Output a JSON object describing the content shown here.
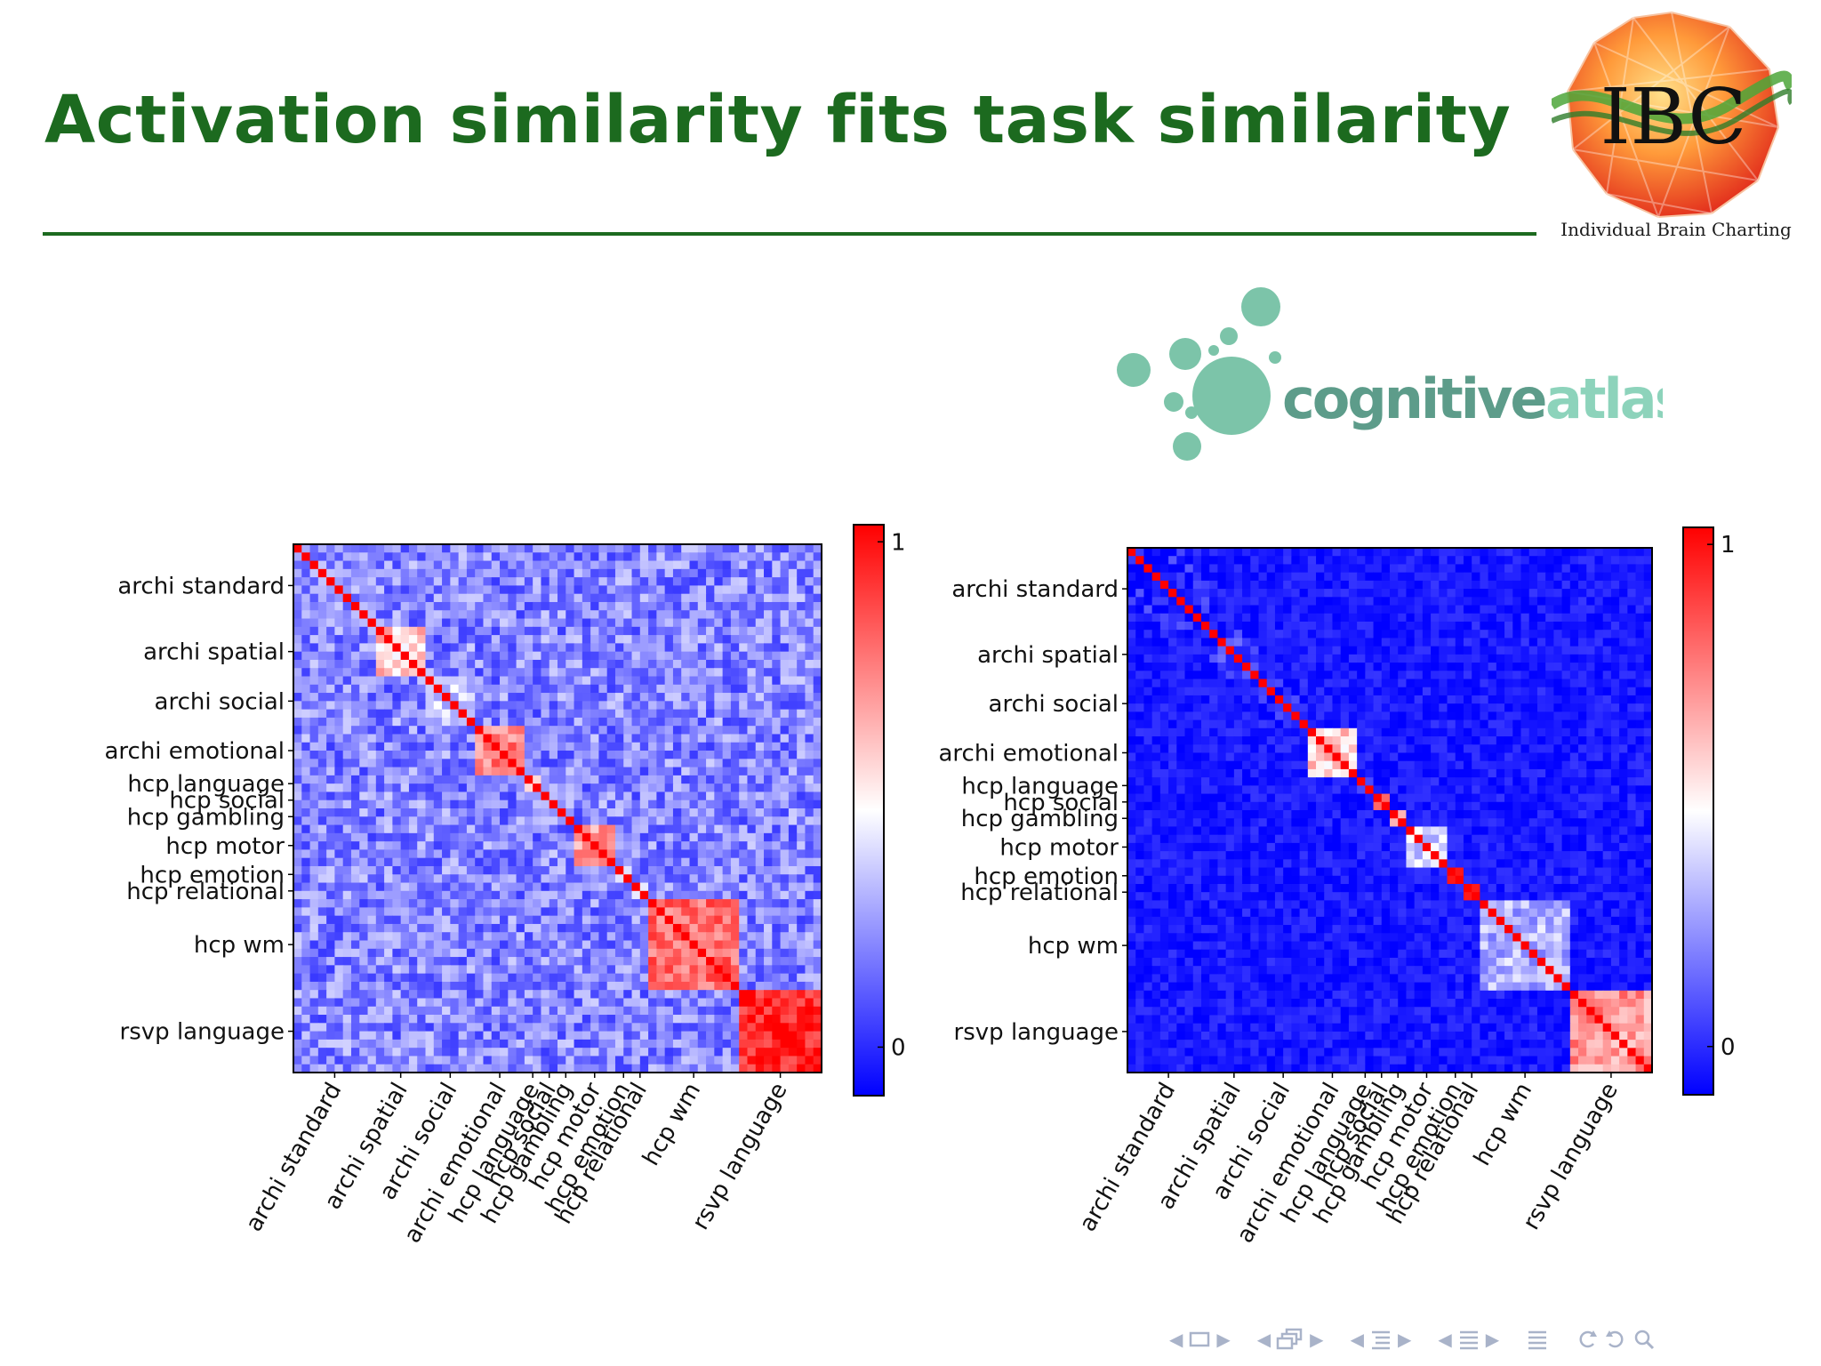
{
  "slide": {
    "title": "Activation similarity fits task similarity",
    "ibc_logo_text": "IBC",
    "ibc_caption": "Individual Brain Charting",
    "ca_logo_word1": "cognitive",
    "ca_logo_word2": "atlas"
  },
  "colors": {
    "title": "#1c6a1f",
    "cmap_low": "#0000ff",
    "cmap_mid": "#ffffff",
    "cmap_high": "#ff0000",
    "cognitive_atlas_teal": "#7cc4a9"
  },
  "navigation": {
    "icons": [
      "frame-nav-icon",
      "subsection-nav-icon",
      "section-nav-icon",
      "outline-nav-icon",
      "appendix-icon",
      "search-icon"
    ]
  },
  "chart_data": [
    {
      "type": "heatmap",
      "title": "",
      "colorbar": {
        "min": 0,
        "max": 1,
        "tick_labels": [
          "0",
          "1"
        ],
        "colormap": "bwr"
      },
      "n_conditions": 64,
      "task_groups": [
        {
          "label": "archi standard",
          "start": 0,
          "end": 10
        },
        {
          "label": "archi spatial",
          "start": 10,
          "end": 16
        },
        {
          "label": "archi social",
          "start": 16,
          "end": 22
        },
        {
          "label": "archi emotional",
          "start": 22,
          "end": 28
        },
        {
          "label": "hcp language",
          "start": 28,
          "end": 30
        },
        {
          "label": "hcp social",
          "start": 30,
          "end": 32
        },
        {
          "label": "hcp gambling",
          "start": 32,
          "end": 34
        },
        {
          "label": "hcp motor",
          "start": 34,
          "end": 39
        },
        {
          "label": "hcp emotion",
          "start": 39,
          "end": 41
        },
        {
          "label": "hcp relational",
          "start": 41,
          "end": 43
        },
        {
          "label": "hcp wm",
          "start": 43,
          "end": 54
        },
        {
          "label": "rsvp language",
          "start": 54,
          "end": 64
        }
      ],
      "diagonal_value": 1.0,
      "within_group_similarity": [
        0.28,
        0.6,
        0.42,
        0.75,
        0.45,
        0.4,
        0.4,
        0.72,
        0.5,
        0.5,
        0.78,
        0.92
      ],
      "between_group_similarity": 0.26
    },
    {
      "type": "heatmap",
      "title": "",
      "colorbar": {
        "min": 0,
        "max": 1,
        "tick_labels": [
          "0",
          "1"
        ],
        "colormap": "bwr"
      },
      "n_conditions": 64,
      "task_groups": [
        {
          "label": "archi standard",
          "start": 0,
          "end": 10
        },
        {
          "label": "archi spatial",
          "start": 10,
          "end": 16
        },
        {
          "label": "archi social",
          "start": 16,
          "end": 22
        },
        {
          "label": "archi emotional",
          "start": 22,
          "end": 28
        },
        {
          "label": "hcp language",
          "start": 28,
          "end": 30
        },
        {
          "label": "hcp social",
          "start": 30,
          "end": 32
        },
        {
          "label": "hcp gambling",
          "start": 32,
          "end": 34
        },
        {
          "label": "hcp motor",
          "start": 34,
          "end": 39
        },
        {
          "label": "hcp emotion",
          "start": 39,
          "end": 41
        },
        {
          "label": "hcp relational",
          "start": 41,
          "end": 43
        },
        {
          "label": "hcp wm",
          "start": 43,
          "end": 54
        },
        {
          "label": "rsvp language",
          "start": 54,
          "end": 64
        }
      ],
      "diagonal_value": 1.0,
      "within_group_similarity": [
        0.05,
        0.1,
        0.05,
        0.6,
        0.2,
        0.7,
        0.7,
        0.4,
        0.85,
        0.85,
        0.35,
        0.7
      ],
      "between_group_similarity": 0.05
    }
  ]
}
